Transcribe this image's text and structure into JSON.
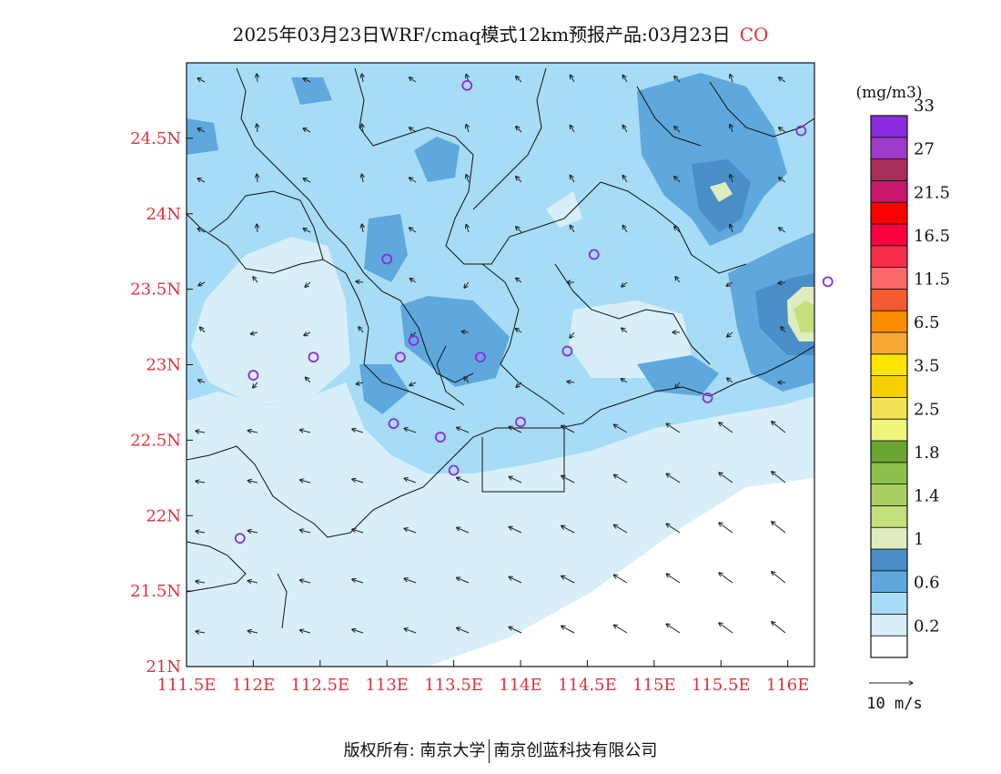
{
  "title": {
    "text": "2025年03月23日WRF/cmaq模式12km预报产品:03月23日",
    "variable": "CO"
  },
  "map": {
    "lon_ticks": [
      "111.5E",
      "112E",
      "112.5E",
      "113E",
      "113.5E",
      "114E",
      "114.5E",
      "115E",
      "115.5E",
      "116E"
    ],
    "lat_ticks": [
      "21N",
      "21.5N",
      "22N",
      "22.5N",
      "23N",
      "23.5N",
      "24N",
      "24.5N"
    ],
    "lon_range": [
      111.5,
      116.2
    ],
    "lat_range": [
      21.0,
      25.0
    ],
    "tick_color": "#e0303a",
    "stations": [
      {
        "lon": 113.6,
        "lat": 24.85
      },
      {
        "lon": 116.1,
        "lat": 24.55
      },
      {
        "lon": 113.0,
        "lat": 23.7
      },
      {
        "lon": 114.55,
        "lat": 23.73
      },
      {
        "lon": 116.3,
        "lat": 23.55
      },
      {
        "lon": 113.2,
        "lat": 23.16
      },
      {
        "lon": 112.45,
        "lat": 23.05
      },
      {
        "lon": 113.1,
        "lat": 23.05
      },
      {
        "lon": 113.7,
        "lat": 23.05
      },
      {
        "lon": 114.35,
        "lat": 23.09
      },
      {
        "lon": 112.0,
        "lat": 22.93
      },
      {
        "lon": 115.4,
        "lat": 22.78
      },
      {
        "lon": 113.05,
        "lat": 22.61
      },
      {
        "lon": 114.0,
        "lat": 22.62
      },
      {
        "lon": 113.4,
        "lat": 22.52
      },
      {
        "lon": 113.5,
        "lat": 22.3
      },
      {
        "lon": 111.9,
        "lat": 21.85
      }
    ]
  },
  "legend": {
    "unit": "(mg/m3)",
    "levels": [
      "0.2",
      "0.6",
      "1",
      "1.4",
      "1.8",
      "2.5",
      "3.5",
      "6.5",
      "11.5",
      "16.5",
      "21.5",
      "27",
      "33"
    ],
    "colors": [
      "#ffffff",
      "#d8effa",
      "#a6dcf6",
      "#5fa8dd",
      "#4a8ec8",
      "#dfecc0",
      "#c4e07a",
      "#a8d060",
      "#8cc04a",
      "#6aa432",
      "#eef57a",
      "#f3e257",
      "#f8d000",
      "#ffe600",
      "#f7a834",
      "#fb8c00",
      "#f45b32",
      "#ff6868",
      "#f72e4a",
      "#ff0040",
      "#ff0000",
      "#c8176a",
      "#a62e5a",
      "#9e39c8",
      "#8a2be2"
    ],
    "wind_scale": "10 m/s"
  },
  "footer": {
    "copyright": "版权所有: 南京大学",
    "company": "南京创蓝科技有限公司"
  }
}
